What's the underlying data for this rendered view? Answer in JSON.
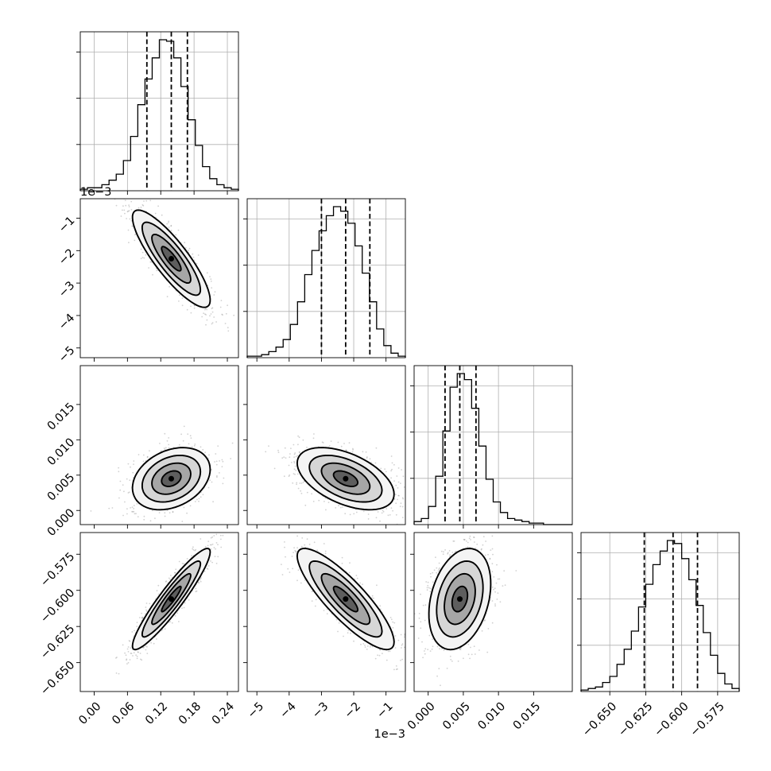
{
  "chart_data": {
    "type": "corner",
    "parameters": [
      {
        "id": "p1",
        "median": 0.139,
        "quantiles": [
          0.095,
          0.139,
          0.168
        ],
        "range": [
          -0.025,
          0.26
        ],
        "ticks": [
          0.0,
          0.06,
          0.12,
          0.18,
          0.24
        ],
        "tick_labels": [
          "0.00",
          "0.06",
          "0.12",
          "0.18",
          "0.24"
        ],
        "offset_label": "",
        "sd": 0.035,
        "hist": [
          1,
          2,
          2,
          4,
          7,
          11,
          20,
          36,
          57,
          74,
          88,
          100,
          99,
          88,
          69,
          47,
          30,
          16,
          8,
          4,
          2,
          1
        ]
      },
      {
        "id": "p2",
        "median": -2.25,
        "quantiles": [
          -3.0,
          -2.25,
          -1.5
        ],
        "range": [
          -5.3,
          -0.4
        ],
        "ticks": [
          -5,
          -4,
          -3,
          -2,
          -1
        ],
        "tick_labels": [
          "−5",
          "−4",
          "−3",
          "−2",
          "−1"
        ],
        "offset_label": "1e−3",
        "sd": 0.75,
        "hist": [
          1,
          1,
          2,
          4,
          7,
          12,
          22,
          37,
          55,
          71,
          84,
          94,
          100,
          97,
          89,
          74,
          56,
          37,
          19,
          8,
          3,
          1
        ]
      },
      {
        "id": "p3",
        "median": 0.0045,
        "quantiles": [
          0.0024,
          0.0045,
          0.0068
        ],
        "range": [
          -0.002,
          0.0205
        ],
        "ticks": [
          0.0,
          0.005,
          0.01,
          0.015
        ],
        "tick_labels": [
          "0.000",
          "0.005",
          "0.010",
          "0.015"
        ],
        "offset_label": "",
        "sd": 0.0022,
        "hist": [
          2,
          4,
          12,
          32,
          62,
          91,
          100,
          96,
          77,
          52,
          30,
          15,
          8,
          4,
          3,
          2,
          1,
          1,
          0,
          0,
          0,
          0
        ]
      },
      {
        "id": "p4",
        "median": -0.606,
        "quantiles": [
          -0.626,
          -0.606,
          -0.589
        ],
        "range": [
          -0.67,
          -0.56
        ],
        "ticks": [
          -0.65,
          -0.625,
          -0.6,
          -0.575
        ],
        "tick_labels": [
          "−0.650",
          "−0.625",
          "−0.600",
          "−0.575"
        ],
        "offset_label": "",
        "sd": 0.0175,
        "hist": [
          1,
          2,
          3,
          6,
          10,
          18,
          28,
          40,
          56,
          71,
          84,
          93,
          100,
          98,
          88,
          74,
          57,
          39,
          24,
          12,
          5,
          2
        ]
      }
    ],
    "correlations": {
      "p1_p2": -0.85,
      "p1_p3": 0.3,
      "p2_p3": -0.5,
      "p1_p4": 0.93,
      "p2_p4": -0.85,
      "p3_p4": 0.3
    },
    "contour_levels_sigma": [
      0.5,
      1.0,
      1.5,
      2.0
    ],
    "grid": true,
    "colors": {
      "ink": "#000000",
      "grid": "#b0b0b0",
      "points": "#7a7a7a",
      "contour_fills": [
        "#f4f4f4",
        "#d6d6d6",
        "#a6a6a6",
        "#5e5e5e"
      ]
    }
  }
}
